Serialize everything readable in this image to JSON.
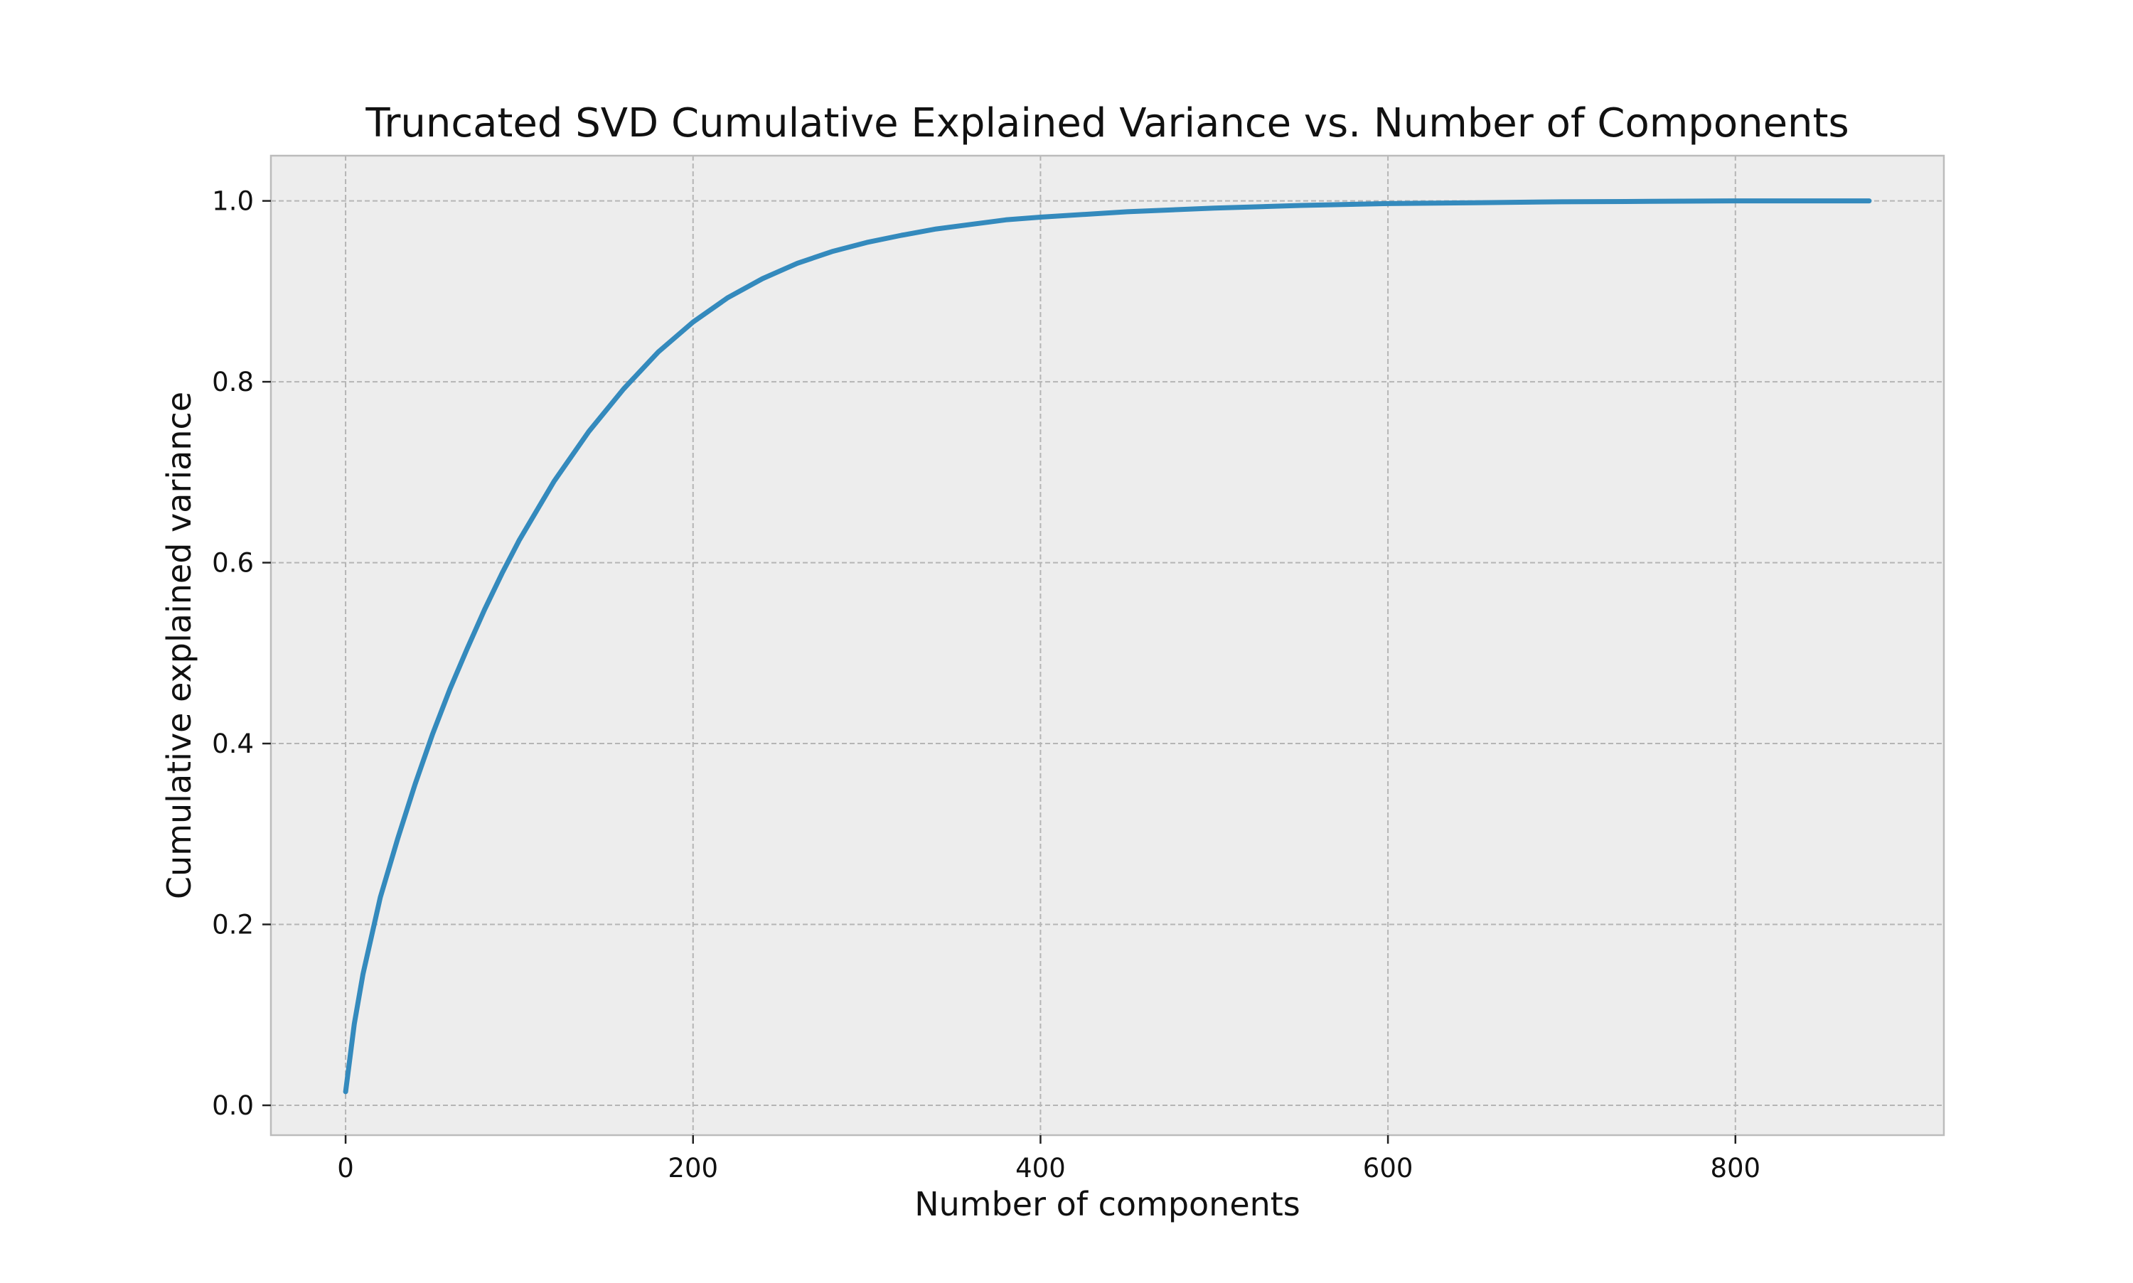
{
  "chart_data": {
    "type": "line",
    "title": "Truncated SVD Cumulative Explained Variance vs. Number of Components",
    "xlabel": "Number of components",
    "ylabel": "Cumulative explained variance",
    "xlim": [
      -43,
      920
    ],
    "ylim": [
      -0.033,
      1.05
    ],
    "xticks": [
      0,
      200,
      400,
      600,
      800
    ],
    "yticks": [
      0.0,
      0.2,
      0.4,
      0.6,
      0.8,
      1.0
    ],
    "xtick_labels": [
      "0",
      "200",
      "400",
      "600",
      "800"
    ],
    "ytick_labels": [
      "0.0",
      "0.2",
      "0.4",
      "0.6",
      "0.8",
      "1.0"
    ],
    "grid": true,
    "colors": {
      "plot_background": "#EDEDED",
      "grid": "#B5B5B5",
      "frame": "#BCBCBC",
      "line": "#348ABD"
    },
    "series": [
      {
        "x": [
          0,
          5,
          10,
          20,
          30,
          40,
          50,
          60,
          70,
          80,
          90,
          100,
          120,
          140,
          160,
          180,
          200,
          220,
          240,
          260,
          280,
          300,
          320,
          340,
          360,
          380,
          400,
          450,
          500,
          550,
          600,
          650,
          700,
          750,
          800,
          850,
          877
        ],
        "values": [
          0.015,
          0.09,
          0.145,
          0.23,
          0.295,
          0.355,
          0.41,
          0.46,
          0.505,
          0.548,
          0.588,
          0.625,
          0.69,
          0.745,
          0.792,
          0.833,
          0.866,
          0.893,
          0.914,
          0.931,
          0.944,
          0.954,
          0.962,
          0.969,
          0.974,
          0.979,
          0.982,
          0.988,
          0.992,
          0.995,
          0.997,
          0.998,
          0.999,
          0.9995,
          1.0,
          1.0,
          1.0
        ]
      }
    ]
  }
}
